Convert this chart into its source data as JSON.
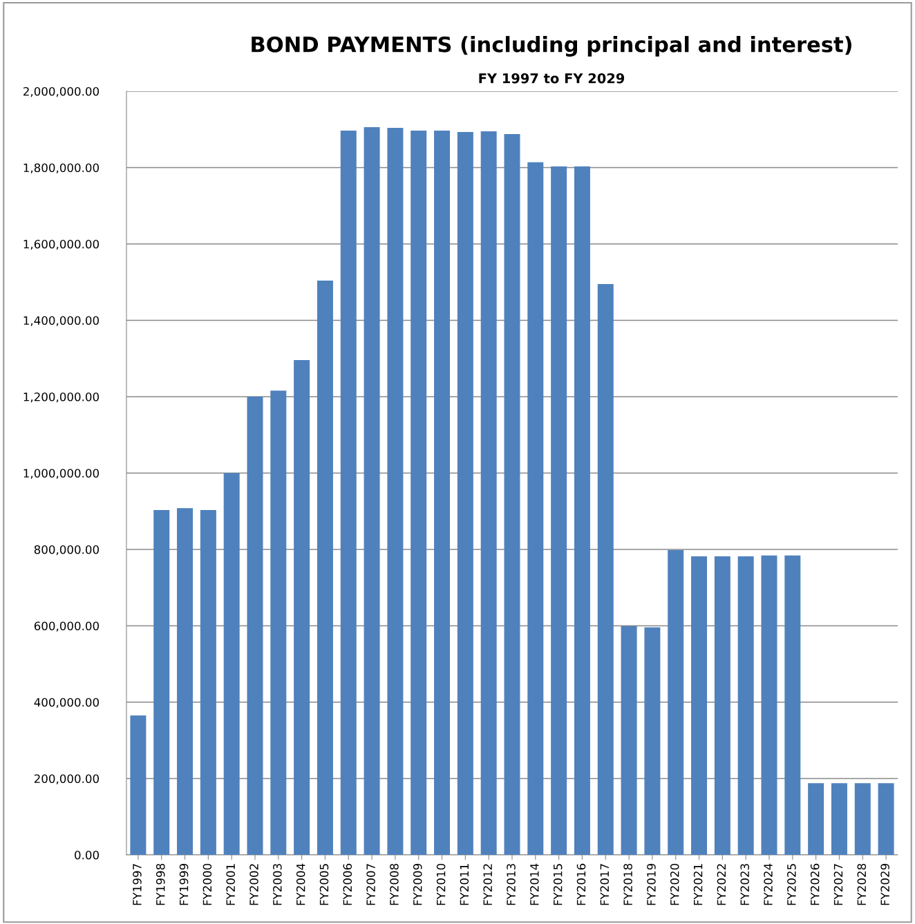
{
  "chart_data": {
    "type": "bar",
    "title": "BOND PAYMENTS (including principal and interest)",
    "subtitle": "FY 1997 to FY 2029",
    "categories": [
      "FY1997",
      "FY1998",
      "FY1999",
      "FY2000",
      "FY2001",
      "FY2002",
      "FY2003",
      "FY2004",
      "FY2005",
      "FY2006",
      "FY2007",
      "FY2008",
      "FY2009",
      "FY2010",
      "FY2011",
      "FY2012",
      "FY2013",
      "FY2014",
      "FY2015",
      "FY2016",
      "FY2017",
      "FY2018",
      "FY2019",
      "FY2020",
      "FY2021",
      "FY2022",
      "FY2023",
      "FY2024",
      "FY2025",
      "FY2026",
      "FY2027",
      "FY2028",
      "FY2029"
    ],
    "values": [
      365000,
      903000,
      908000,
      903000,
      1000000,
      1200000,
      1216000,
      1296000,
      1504000,
      1897000,
      1906000,
      1904000,
      1897000,
      1897000,
      1893000,
      1895000,
      1888000,
      1814000,
      1803000,
      1803000,
      1495000,
      599000,
      596000,
      798000,
      782000,
      782000,
      782000,
      784000,
      784000,
      188000,
      188000,
      188000,
      188000
    ],
    "color": "#4f81bd",
    "ylim": [
      0,
      2000000
    ],
    "yticks": [
      {
        "value": 0,
        "label": "0.00"
      },
      {
        "value": 200000,
        "label": "200,000.00"
      },
      {
        "value": 400000,
        "label": "400,000.00"
      },
      {
        "value": 600000,
        "label": "600,000.00"
      },
      {
        "value": 800000,
        "label": "800,000.00"
      },
      {
        "value": 1000000,
        "label": "1,000,000.00"
      },
      {
        "value": 1200000,
        "label": "1,200,000.00"
      },
      {
        "value": 1400000,
        "label": "1,400,000.00"
      },
      {
        "value": 1600000,
        "label": "1,600,000.00"
      },
      {
        "value": 1800000,
        "label": "1,800,000.00"
      },
      {
        "value": 2000000,
        "label": "2,000,000.00"
      }
    ],
    "grid": "y",
    "legend": false
  }
}
